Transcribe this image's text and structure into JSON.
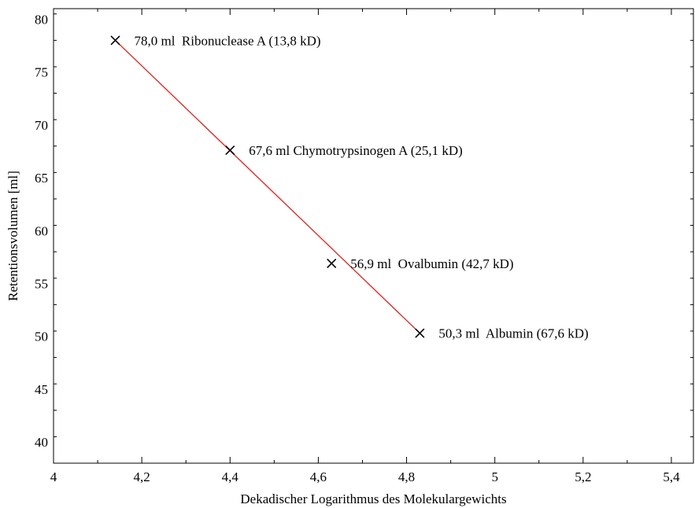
{
  "chart_data": {
    "type": "scatter",
    "title": "",
    "xlabel": "Dekadischer Logarithmus des Molekulargewichts",
    "ylabel": "Retentionsvolumen [ml]",
    "xlim": [
      4.0,
      5.45
    ],
    "ylim": [
      38.0,
      81.0
    ],
    "x_ticks": [
      4.0,
      4.2,
      4.4,
      4.6,
      4.8,
      5.0,
      5.2,
      5.4
    ],
    "x_tick_labels": [
      "4",
      "4,2",
      "4,4",
      "4,6",
      "4,8",
      "5",
      "5,2",
      "5,4"
    ],
    "y_ticks": [
      40,
      45,
      50,
      55,
      60,
      65,
      70,
      75,
      80
    ],
    "y_tick_labels": [
      "40",
      "45",
      "50",
      "55",
      "60",
      "65",
      "70",
      "75",
      "80"
    ],
    "grid": false,
    "series": [
      {
        "marker": "x",
        "color": "#000000",
        "x": [
          4.14,
          4.4,
          4.63,
          4.83
        ],
        "y": [
          78.0,
          67.6,
          56.9,
          50.3
        ],
        "labels": [
          "78,0 ml  Ribonuclease A (13,8 kD)",
          "67,6 ml Chymotrypsinogen A (25,1 kD)",
          "56,9 ml  Ovalbumin (42,7 kD)",
          "50,3 ml  Albumin (67,6 kD)"
        ]
      },
      {
        "type": "line",
        "color": "#e0201b",
        "x": [
          4.14,
          4.83
        ],
        "y": [
          78.0,
          50.3
        ]
      }
    ]
  }
}
